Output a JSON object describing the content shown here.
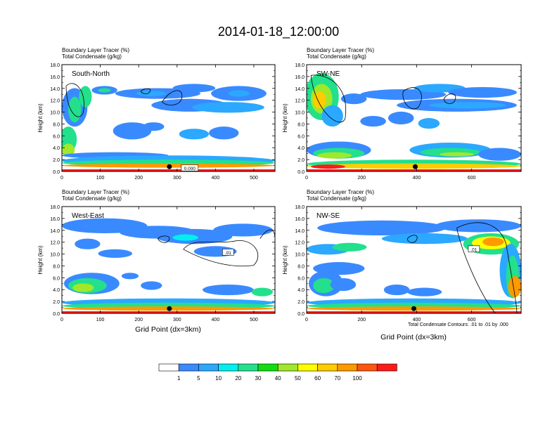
{
  "title": "2014-01-18_12:00:00",
  "y_label": "Height (km)",
  "x_label": "Grid Point (dx=3km)",
  "subtitle_1": "Boundary Layer Tracer    (%)",
  "subtitle_2": "Total Condensate    (g/kg)",
  "contour_note": "Total Condensate Contours: .01 to .01 by .000",
  "colorbar": {
    "colors": [
      "#ffffff",
      "#3a8aff",
      "#2ba8ff",
      "#00f0f0",
      "#22e08c",
      "#11dd11",
      "#a0e82a",
      "#ffff00",
      "#ffcc00",
      "#ff9900",
      "#ff5511",
      "#ff1a1a"
    ],
    "labels": [
      "1",
      "5",
      "10",
      "20",
      "30",
      "40",
      "50",
      "60",
      "70",
      "100"
    ]
  },
  "chart_data": [
    {
      "type": "heatmap",
      "panel_label": "South-North",
      "x_ticks": [
        "0",
        "100",
        "200",
        "300",
        "400",
        "500"
      ],
      "xlim": [
        0,
        555
      ],
      "y_ticks": [
        "0.0",
        "2.0",
        "4.0",
        "6.0",
        "8.0",
        "10.0",
        "12.0",
        "14.0",
        "16.0",
        "18.0"
      ],
      "ylim": [
        0,
        18
      ],
      "point_marker": [
        280,
        0.8
      ],
      "contour_labels": [
        "0.000"
      ]
    },
    {
      "type": "heatmap",
      "panel_label": "SW-NE",
      "x_ticks": [
        "0",
        "200",
        "400",
        "600"
      ],
      "xlim": [
        0,
        780
      ],
      "y_ticks": [
        "0.0",
        "2.0",
        "4.0",
        "6.0",
        "8.0",
        "10.0",
        "12.0",
        "14.0",
        "16.0",
        "18.0"
      ],
      "ylim": [
        0,
        18
      ],
      "point_marker": [
        395,
        0.8
      ],
      "contour_labels": []
    },
    {
      "type": "heatmap",
      "panel_label": "West-East",
      "x_ticks": [
        "0",
        "100",
        "200",
        "300",
        "400",
        "500"
      ],
      "xlim": [
        0,
        555
      ],
      "y_ticks": [
        "0.0",
        "2.0",
        "4.0",
        "6.0",
        "8.0",
        "10.0",
        "12.0",
        "14.0",
        "16.0",
        "18.0"
      ],
      "ylim": [
        0,
        18
      ],
      "point_marker": [
        280,
        0.8
      ],
      "contour_labels": [
        ".01"
      ]
    },
    {
      "type": "heatmap",
      "panel_label": "NW-SE",
      "x_ticks": [
        "0",
        "200",
        "400",
        "600"
      ],
      "xlim": [
        0,
        780
      ],
      "y_ticks": [
        "0.0",
        "2.0",
        "4.0",
        "6.0",
        "8.0",
        "10.0",
        "12.0",
        "14.0",
        "16.0",
        "18.0"
      ],
      "ylim": [
        0,
        18
      ],
      "point_marker": [
        390,
        0.8
      ],
      "contour_labels": [
        ".01"
      ]
    }
  ]
}
